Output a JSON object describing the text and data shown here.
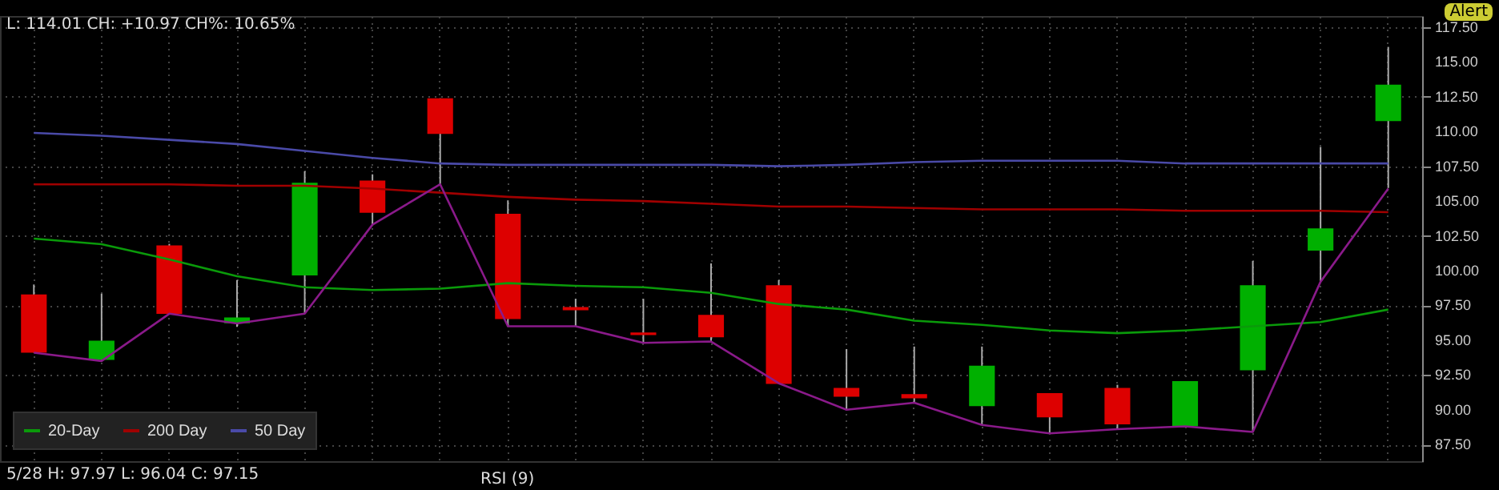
{
  "chart_data": {
    "type": "candlestick",
    "categories": [
      null,
      null,
      null,
      null,
      null,
      null,
      null,
      null,
      null,
      null,
      null,
      null,
      null,
      null,
      null,
      null,
      null,
      null,
      null,
      null,
      null
    ],
    "ohlc": [
      [
        98.28,
        99.0,
        94.1,
        94.1
      ],
      [
        93.58,
        98.34,
        93.47,
        94.96
      ],
      [
        101.81,
        101.92,
        96.89,
        96.89
      ],
      [
        96.22,
        99.32,
        95.96,
        96.63
      ],
      [
        99.65,
        107.14,
        96.89,
        106.32
      ],
      [
        106.47,
        106.92,
        103.31,
        104.15
      ],
      [
        112.39,
        112.39,
        106.21,
        109.82
      ],
      [
        104.09,
        105.05,
        95.96,
        96.52
      ],
      [
        97.38,
        97.97,
        96.04,
        97.15
      ],
      [
        95.55,
        97.97,
        94.77,
        95.37
      ],
      [
        96.82,
        100.51,
        94.92,
        95.21
      ],
      [
        98.95,
        99.32,
        91.86,
        91.86
      ],
      [
        91.57,
        94.36,
        90.0,
        90.93
      ],
      [
        91.12,
        94.54,
        90.45,
        90.82
      ],
      [
        90.26,
        94.54,
        88.89,
        93.17
      ],
      [
        91.19,
        91.19,
        88.33,
        89.45
      ],
      [
        91.57,
        91.79,
        88.59,
        88.95
      ],
      [
        88.81,
        92.05,
        88.81,
        92.05
      ],
      [
        92.83,
        100.69,
        88.44,
        98.95
      ],
      [
        101.44,
        108.89,
        99.2,
        103.04
      ],
      [
        110.75,
        116.08,
        105.94,
        113.36
      ]
    ],
    "colors": [
      "#dd0000",
      "#00b000",
      "#dd0000",
      "#00b000",
      "#00b000",
      "#dd0000",
      "#dd0000",
      "#dd0000",
      "#dd0000",
      "#dd0000",
      "#dd0000",
      "#dd0000",
      "#dd0000",
      "#dd0000",
      "#00b000",
      "#dd0000",
      "#dd0000",
      "#00b000",
      "#00b000",
      "#00b000",
      "#00b000"
    ],
    "series": [
      {
        "type": "line",
        "name": "20-Day",
        "color": "#0a9a0a",
        "values": [
          102.3,
          101.9,
          100.8,
          99.6,
          98.8,
          98.6,
          98.7,
          99.1,
          98.9,
          98.8,
          98.4,
          97.6,
          97.2,
          96.4,
          96.1,
          95.7,
          95.5,
          95.7,
          96.0,
          96.3,
          97.2
        ]
      },
      {
        "type": "line",
        "name": "200 Day",
        "color": "#a00000",
        "values": [
          106.2,
          106.2,
          106.2,
          106.1,
          106.1,
          105.9,
          105.6,
          105.3,
          105.1,
          105.0,
          104.8,
          104.6,
          104.6,
          104.5,
          104.4,
          104.4,
          104.4,
          104.3,
          104.3,
          104.3,
          104.2
        ]
      },
      {
        "type": "line",
        "name": "50 Day",
        "color": "#4a4aa8",
        "values": [
          109.9,
          109.7,
          109.4,
          109.1,
          108.6,
          108.1,
          107.7,
          107.6,
          107.6,
          107.6,
          107.6,
          107.5,
          107.6,
          107.8,
          107.9,
          107.9,
          107.9,
          107.7,
          107.7,
          107.7,
          107.7
        ]
      },
      {
        "type": "line",
        "color": "#8a1a8a",
        "values": [
          94.1,
          93.5,
          96.9,
          96.2,
          96.9,
          103.3,
          106.2,
          96.0,
          96.0,
          94.8,
          94.9,
          91.9,
          90.0,
          90.5,
          88.9,
          88.3,
          88.6,
          88.8,
          88.4,
          99.2,
          105.9
        ]
      }
    ],
    "ylim": [
      86.3,
      118.3
    ],
    "yticks": [
      {
        "value": 87.5,
        "label": "87.50"
      },
      {
        "value": 90,
        "label": "90.00"
      },
      {
        "value": 92.5,
        "label": "92.50"
      },
      {
        "value": 95,
        "label": "95.00"
      },
      {
        "value": 97.5,
        "label": "97.50"
      },
      {
        "value": 100,
        "label": "100.00"
      },
      {
        "value": 102.5,
        "label": "102.50"
      },
      {
        "value": 105,
        "label": "105.00"
      },
      {
        "value": 107.5,
        "label": "107.50"
      },
      {
        "value": 110,
        "label": "110.00"
      },
      {
        "value": 112.5,
        "label": "112.50"
      },
      {
        "value": 115,
        "label": "115.00"
      },
      {
        "value": 117.5,
        "label": "117.50"
      }
    ],
    "grid": true,
    "legend": "bottom left",
    "tick_labels": "y",
    "annotations": [
      "L: 114.01 CH: +10.97 CH%: 10.65%",
      "5/28 H: 97.97 L: 96.04 C: 97.15",
      "RSI (9)",
      "Alert"
    ]
  }
}
